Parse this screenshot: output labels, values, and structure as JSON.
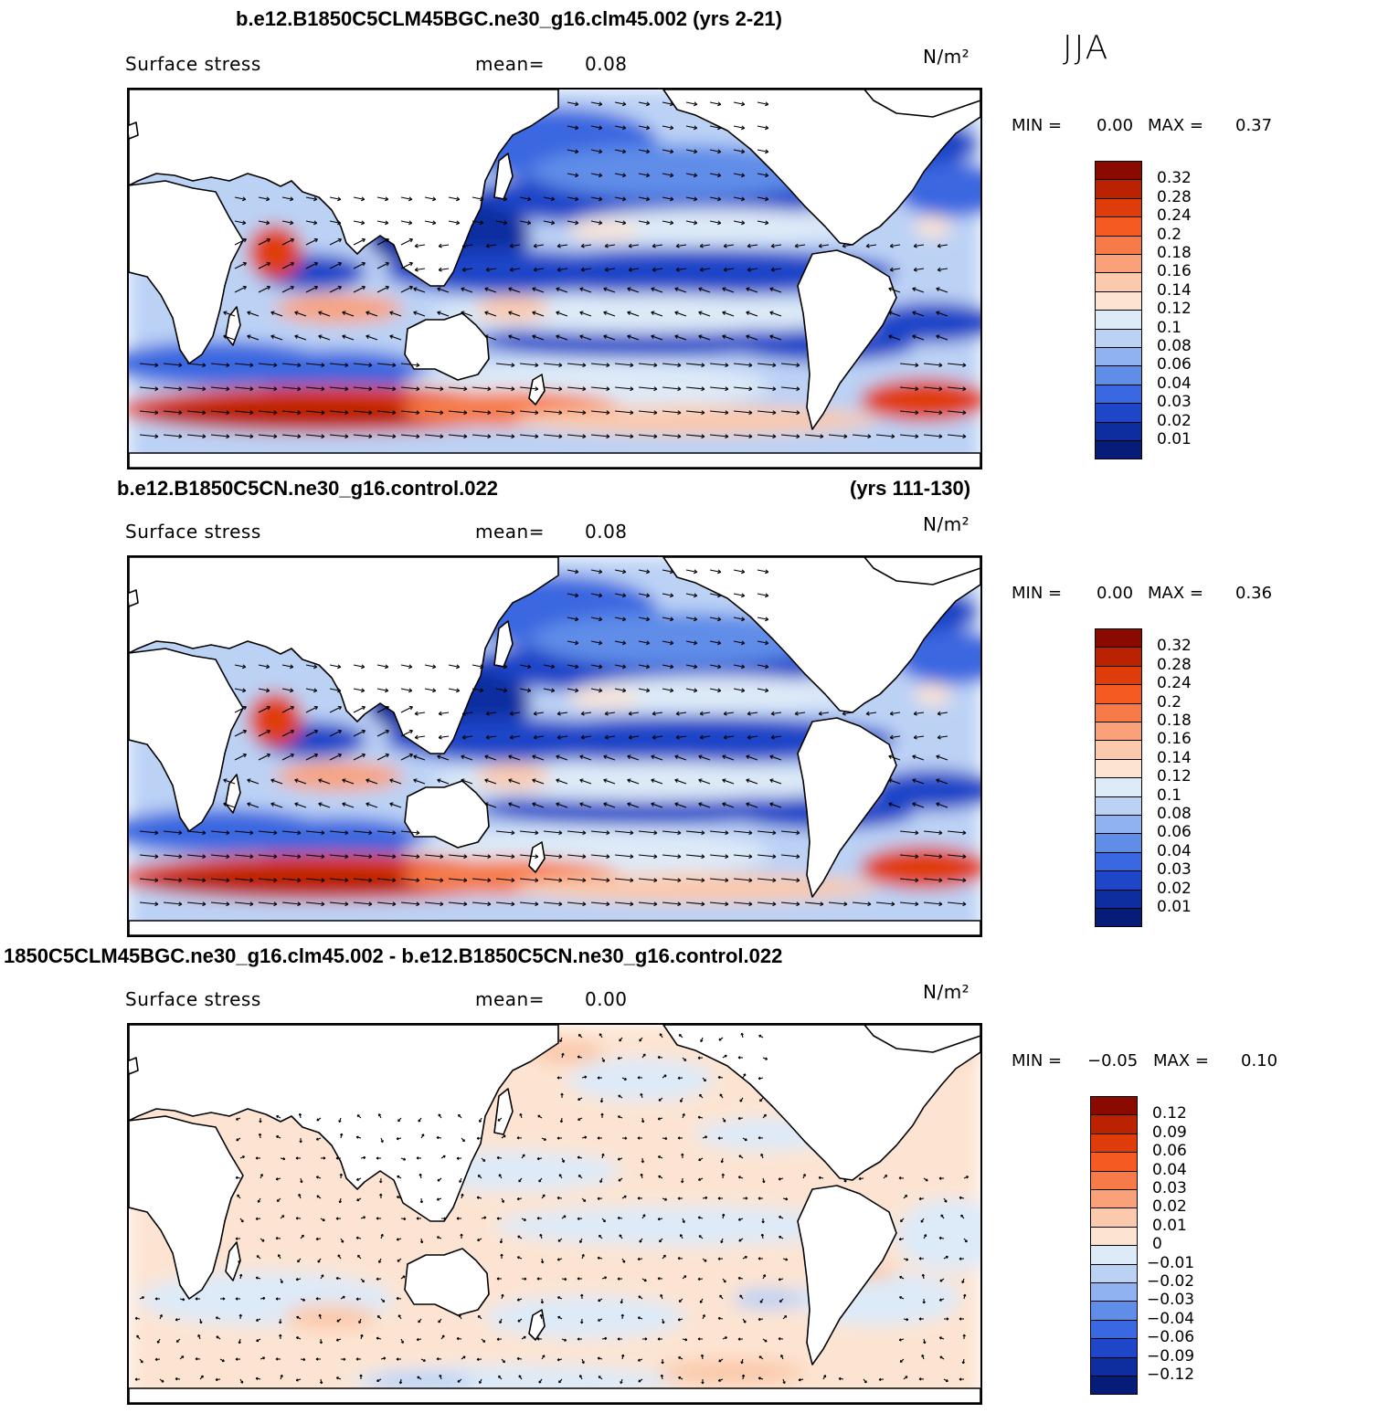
{
  "season": "JJA",
  "panels": [
    {
      "title": "b.e12.B1850C5CLM45BGC.ne30_g16.clm45.002 (yrs 2-21)",
      "title_right": "",
      "field": "Surface stress",
      "mean_label": "mean=",
      "mean_value": "0.08",
      "units": "N/m²",
      "min_label": "MIN =",
      "min_value": "0.00",
      "max_label": "MAX =",
      "max_value": "0.37",
      "kind": "absolute",
      "colorbar": {
        "labels": [
          "0.32",
          "0.28",
          "0.24",
          "0.2",
          "0.18",
          "0.16",
          "0.14",
          "0.12",
          "0.1",
          "0.08",
          "0.06",
          "0.04",
          "0.03",
          "0.02",
          "0.01"
        ],
        "colors": [
          "#8b0a00",
          "#bb2200",
          "#e03c0a",
          "#f55a22",
          "#f77b48",
          "#f9a27a",
          "#fbc9ab",
          "#fde4d2",
          "#ddeaf8",
          "#bcd2f5",
          "#90b2f0",
          "#5f8de8",
          "#3a68e0",
          "#1f45c8",
          "#0e2ea0",
          "#061c78"
        ]
      }
    },
    {
      "title": "b.e12.B1850C5CN.ne30_g16.control.022",
      "title_right": "(yrs 111-130)",
      "field": "Surface stress",
      "mean_label": "mean=",
      "mean_value": "0.08",
      "units": "N/m²",
      "min_label": "MIN =",
      "min_value": "0.00",
      "max_label": "MAX =",
      "max_value": "0.36",
      "kind": "absolute",
      "colorbar": {
        "labels": [
          "0.32",
          "0.28",
          "0.24",
          "0.2",
          "0.18",
          "0.16",
          "0.14",
          "0.12",
          "0.1",
          "0.08",
          "0.06",
          "0.04",
          "0.03",
          "0.02",
          "0.01"
        ],
        "colors": [
          "#8b0a00",
          "#bb2200",
          "#e03c0a",
          "#f55a22",
          "#f77b48",
          "#f9a27a",
          "#fbc9ab",
          "#fde4d2",
          "#ddeaf8",
          "#bcd2f5",
          "#90b2f0",
          "#5f8de8",
          "#3a68e0",
          "#1f45c8",
          "#0e2ea0",
          "#061c78"
        ]
      }
    },
    {
      "title": "1850C5CLM45BGC.ne30_g16.clm45.002 - b.e12.B1850C5CN.ne30_g16.control.022",
      "title_right": "",
      "field": "Surface stress",
      "mean_label": "mean=",
      "mean_value": "0.00",
      "units": "N/m²",
      "min_label": "MIN =",
      "min_value": "−0.05",
      "max_label": "MAX =",
      "max_value": "0.10",
      "kind": "difference",
      "colorbar": {
        "labels": [
          "0.12",
          "0.09",
          "0.06",
          "0.04",
          "0.03",
          "0.02",
          "0.01",
          "0",
          "−0.01",
          "−0.02",
          "−0.03",
          "−0.04",
          "−0.06",
          "−0.09",
          "−0.12"
        ],
        "colors": [
          "#8b0a00",
          "#bb2200",
          "#e03c0a",
          "#f55a22",
          "#f77b48",
          "#f9a27a",
          "#fbc9ab",
          "#fde4d2",
          "#ddeaf8",
          "#bcd2f5",
          "#90b2f0",
          "#5f8de8",
          "#3a68e0",
          "#1f45c8",
          "#0e2ea0",
          "#061c78"
        ]
      }
    }
  ]
}
